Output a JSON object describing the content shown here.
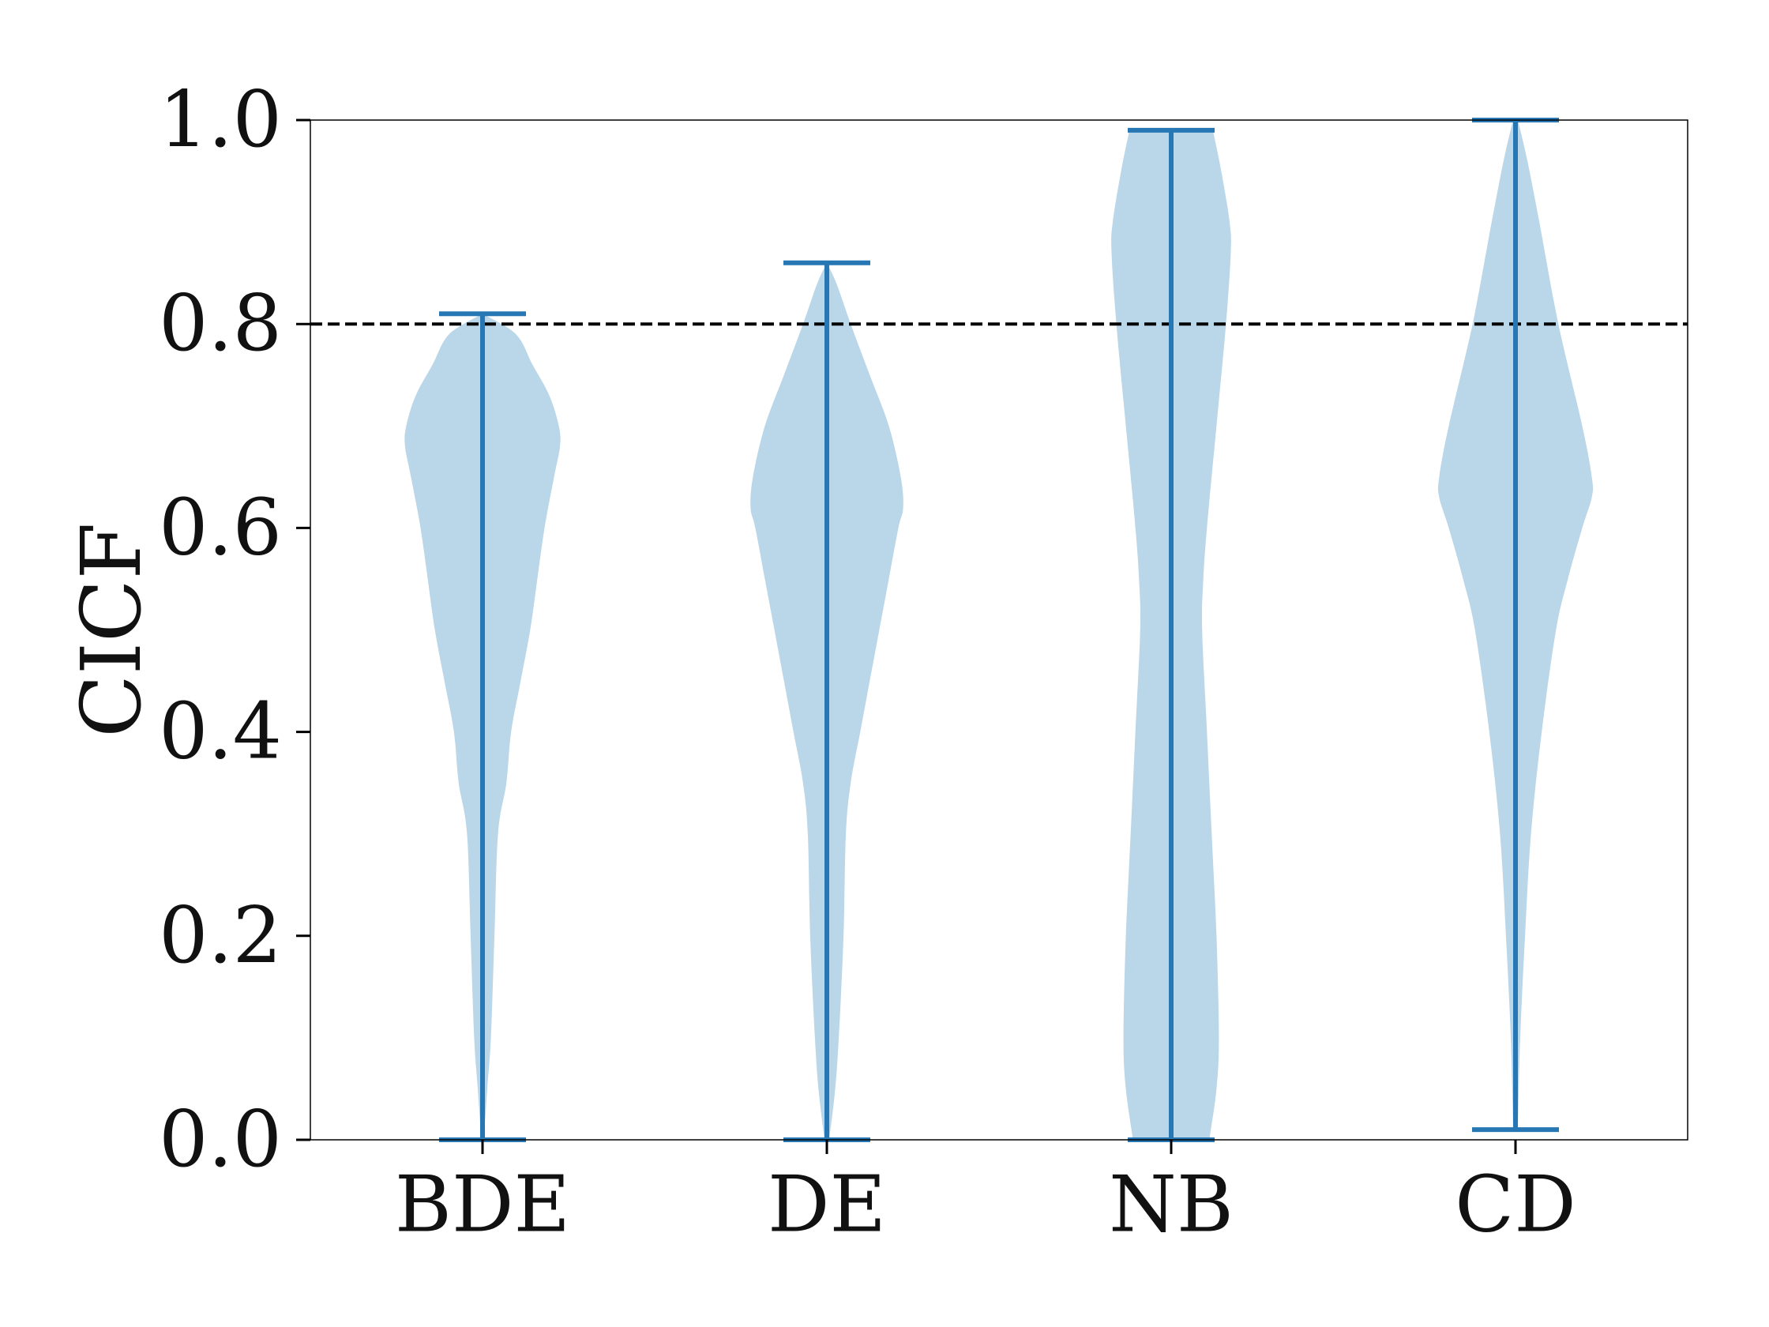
{
  "chart_data": {
    "type": "violin",
    "title": "",
    "xlabel": "",
    "ylabel": "CICF",
    "ylim": [
      0.0,
      1.0
    ],
    "yticks": [
      0.0,
      0.2,
      0.4,
      0.6,
      0.8,
      1.0
    ],
    "ytick_labels": [
      "0.0",
      "0.2",
      "0.4",
      "0.6",
      "0.8",
      "1.0"
    ],
    "categories": [
      "BDE",
      "DE",
      "NB",
      "CD"
    ],
    "reference_line": {
      "y": 0.8,
      "style": "dashed",
      "color": "#000000"
    },
    "colors": {
      "body": "#bad6e9",
      "lines": "#2677b4"
    },
    "series": [
      {
        "name": "BDE",
        "min": 0.0,
        "max": 0.81,
        "profile": [
          [
            0.0,
            0.005
          ],
          [
            0.05,
            0.02
          ],
          [
            0.1,
            0.035
          ],
          [
            0.2,
            0.05
          ],
          [
            0.3,
            0.065
          ],
          [
            0.35,
            0.1
          ],
          [
            0.4,
            0.12
          ],
          [
            0.45,
            0.16
          ],
          [
            0.5,
            0.2
          ],
          [
            0.55,
            0.23
          ],
          [
            0.6,
            0.26
          ],
          [
            0.65,
            0.3
          ],
          [
            0.68,
            0.325
          ],
          [
            0.7,
            0.32
          ],
          [
            0.73,
            0.28
          ],
          [
            0.76,
            0.21
          ],
          [
            0.79,
            0.14
          ],
          [
            0.81,
            0.0
          ]
        ]
      },
      {
        "name": "DE",
        "min": 0.0,
        "max": 0.86,
        "profile": [
          [
            0.0,
            0.01
          ],
          [
            0.05,
            0.035
          ],
          [
            0.1,
            0.05
          ],
          [
            0.2,
            0.07
          ],
          [
            0.3,
            0.08
          ],
          [
            0.35,
            0.1
          ],
          [
            0.4,
            0.14
          ],
          [
            0.45,
            0.18
          ],
          [
            0.5,
            0.22
          ],
          [
            0.55,
            0.26
          ],
          [
            0.6,
            0.3
          ],
          [
            0.62,
            0.32
          ],
          [
            0.65,
            0.31
          ],
          [
            0.7,
            0.26
          ],
          [
            0.75,
            0.18
          ],
          [
            0.8,
            0.1
          ],
          [
            0.84,
            0.04
          ],
          [
            0.86,
            0.0
          ]
        ]
      },
      {
        "name": "NB",
        "min": 0.0,
        "max": 0.99,
        "profile": [
          [
            0.0,
            0.16
          ],
          [
            0.05,
            0.19
          ],
          [
            0.1,
            0.2
          ],
          [
            0.2,
            0.19
          ],
          [
            0.3,
            0.17
          ],
          [
            0.4,
            0.15
          ],
          [
            0.5,
            0.13
          ],
          [
            0.55,
            0.135
          ],
          [
            0.6,
            0.15
          ],
          [
            0.7,
            0.19
          ],
          [
            0.8,
            0.23
          ],
          [
            0.87,
            0.25
          ],
          [
            0.9,
            0.245
          ],
          [
            0.95,
            0.21
          ],
          [
            0.99,
            0.175
          ]
        ]
      },
      {
        "name": "CD",
        "min": 0.01,
        "max": 1.0,
        "profile": [
          [
            0.01,
            0.01
          ],
          [
            0.1,
            0.02
          ],
          [
            0.2,
            0.04
          ],
          [
            0.3,
            0.065
          ],
          [
            0.4,
            0.11
          ],
          [
            0.5,
            0.17
          ],
          [
            0.55,
            0.22
          ],
          [
            0.6,
            0.28
          ],
          [
            0.63,
            0.32
          ],
          [
            0.65,
            0.32
          ],
          [
            0.7,
            0.28
          ],
          [
            0.8,
            0.18
          ],
          [
            0.9,
            0.1
          ],
          [
            0.96,
            0.05
          ],
          [
            1.0,
            0.01
          ]
        ]
      }
    ]
  }
}
